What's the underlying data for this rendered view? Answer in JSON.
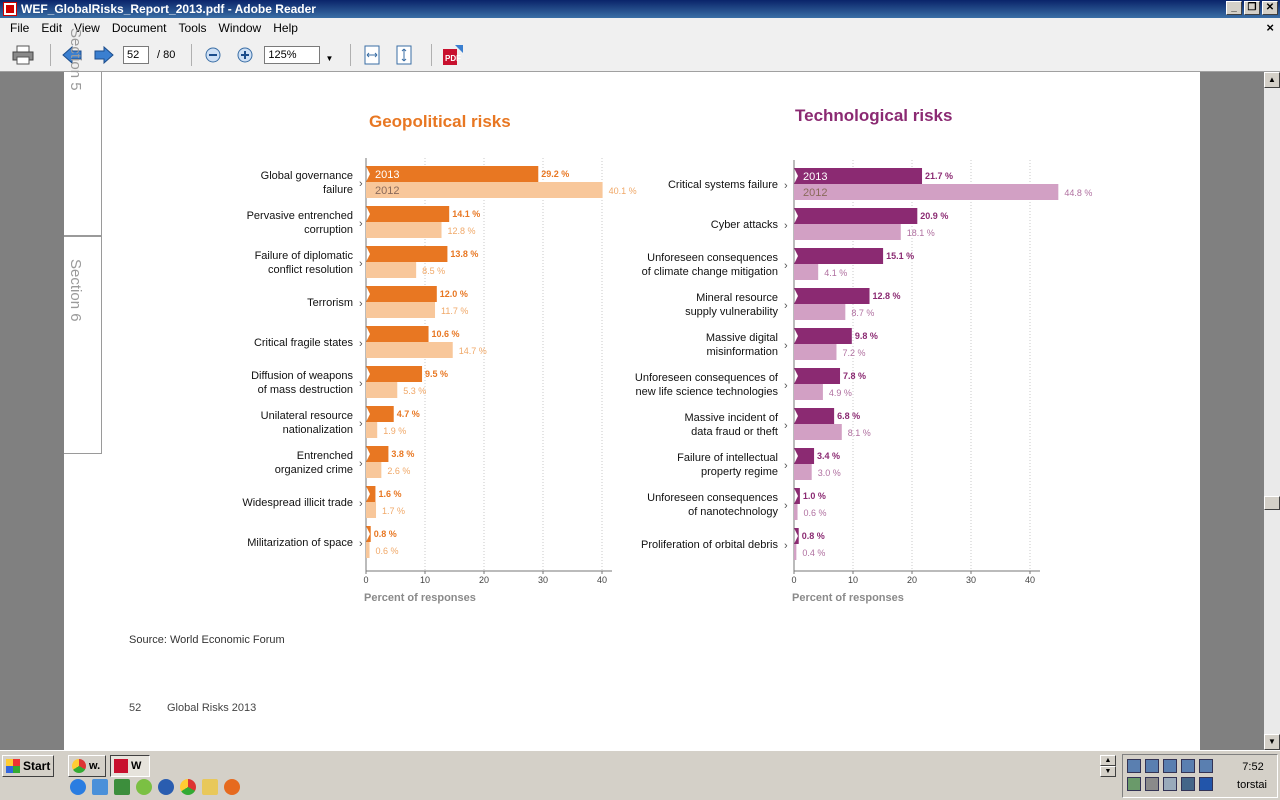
{
  "window": {
    "title": "WEF_GlobalRisks_Report_2013.pdf - Adobe Reader"
  },
  "menu": [
    "File",
    "Edit",
    "View",
    "Document",
    "Tools",
    "Window",
    "Help"
  ],
  "toolbar": {
    "page_current": "52",
    "page_total": "/ 80",
    "zoom": "125%"
  },
  "page": {
    "section5_label": "Section 5",
    "section6_label": "Section 6",
    "source": "Source: World Economic Forum",
    "page_number": "52",
    "footer_title": "Global Risks 2013"
  },
  "colors": {
    "geo_2013": "#e87722",
    "geo_2012": "#f8c79a",
    "tech_2013": "#8b2a72",
    "tech_2012": "#d2a0c4"
  },
  "chart_data": [
    {
      "type": "bar",
      "title": "Geopolitical risks",
      "xlabel": "Percent of responses",
      "xlim": [
        0,
        40
      ],
      "xticks": [
        0,
        10,
        20,
        30,
        40
      ],
      "categories": [
        [
          "Global governance",
          "failure"
        ],
        [
          "Pervasive entrenched",
          "corruption"
        ],
        [
          "Failure of diplomatic",
          "conflict resolution"
        ],
        [
          "Terrorism"
        ],
        [
          "Critical fragile states"
        ],
        [
          "Diffusion of weapons",
          "of mass destruction"
        ],
        [
          "Unilateral resource",
          "nationalization"
        ],
        [
          "Entrenched",
          "organized crime"
        ],
        [
          "Widespread illicit trade"
        ],
        [
          "Militarization of space"
        ]
      ],
      "series": [
        {
          "name": "2013",
          "values": [
            29.2,
            14.1,
            13.8,
            12.0,
            10.6,
            9.5,
            4.7,
            3.8,
            1.6,
            0.8
          ],
          "labels": [
            "29.2 %",
            "14.1 %",
            "13.8 %",
            "12.0 %",
            "10.6 %",
            "9.5 %",
            "4.7 %",
            "3.8 %",
            "1.6 %",
            "0.8 %"
          ]
        },
        {
          "name": "2012",
          "values": [
            40.1,
            12.8,
            8.5,
            11.7,
            14.7,
            5.3,
            1.9,
            2.6,
            1.7,
            0.6
          ],
          "labels": [
            "40.1 %",
            "12.8 %",
            "8.5 %",
            "11.7 %",
            "14.7 %",
            "5.3 %",
            "1.9 %",
            "2.6 %",
            "1.7 %",
            "0.6 %"
          ]
        }
      ]
    },
    {
      "type": "bar",
      "title": "Technological risks",
      "xlabel": "Percent of responses",
      "xlim": [
        0,
        40
      ],
      "xticks": [
        0,
        10,
        20,
        30,
        40
      ],
      "categories": [
        [
          "Critical systems failure"
        ],
        [
          "Cyber attacks"
        ],
        [
          "Unforeseen consequences",
          "of climate change mitigation"
        ],
        [
          "Mineral resource",
          "supply vulnerability"
        ],
        [
          "Massive digital",
          "misinformation"
        ],
        [
          "Unforeseen consequences of",
          "new life science technologies"
        ],
        [
          "Massive incident of",
          "data fraud or theft"
        ],
        [
          "Failure of intellectual",
          "property regime"
        ],
        [
          "Unforeseen consequences",
          "of nanotechnology"
        ],
        [
          "Proliferation of orbital debris"
        ]
      ],
      "series": [
        {
          "name": "2013",
          "values": [
            21.7,
            20.9,
            15.1,
            12.8,
            9.8,
            7.8,
            6.8,
            3.4,
            1.0,
            0.8
          ],
          "labels": [
            "21.7 %",
            "20.9 %",
            "15.1 %",
            "12.8 %",
            "9.8 %",
            "7.8 %",
            "6.8 %",
            "3.4 %",
            "1.0 %",
            "0.8 %"
          ]
        },
        {
          "name": "2012",
          "values": [
            44.8,
            18.1,
            4.1,
            8.7,
            7.2,
            4.9,
            8.1,
            3.0,
            0.6,
            0.4
          ],
          "labels": [
            "44.8 %",
            "18.1 %",
            "4.1 %",
            "8.7 %",
            "7.2 %",
            "4.9 %",
            "8.1 %",
            "3.0 %",
            "0.6 %",
            "0.4 %"
          ]
        }
      ]
    }
  ],
  "taskbar": {
    "start": "Start",
    "tasks": [
      "w.",
      "W"
    ],
    "clock": "7:52",
    "day": "torstai"
  }
}
